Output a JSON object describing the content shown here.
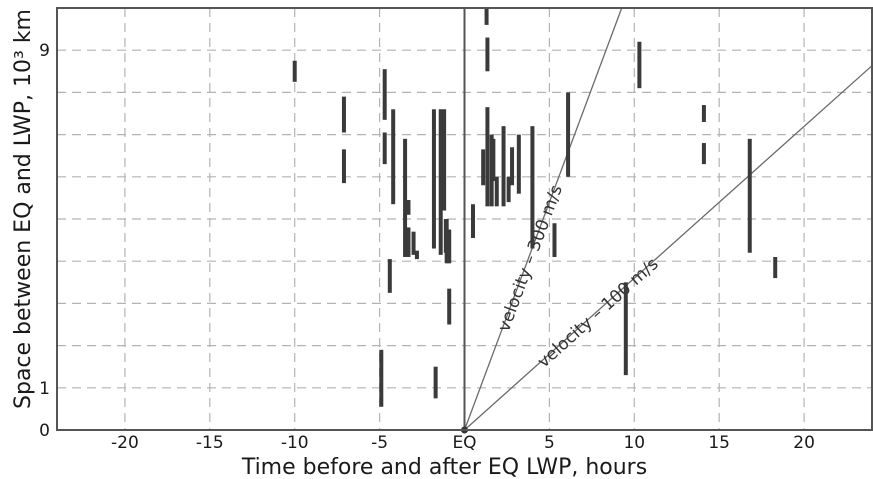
{
  "chart_data": {
    "type": "scatter",
    "xlabel": "Time before and after EQ LWP, hours",
    "ylabel": "Space between EQ and LWP, 10³ km",
    "xlim": [
      -24,
      24
    ],
    "ylim": [
      0,
      10
    ],
    "x_ticks": [
      -20,
      -15,
      -10,
      -5,
      0,
      5,
      10,
      15,
      20
    ],
    "x_tick_labels": [
      "-20",
      "-15",
      "-10",
      "-5",
      "EQ",
      "5",
      "10",
      "15",
      "20"
    ],
    "y_ticks": [
      0,
      1,
      9
    ],
    "y_tick_labels": [
      "0",
      "1",
      "9"
    ],
    "grid": true,
    "event_marker_x": 0,
    "colors": {
      "bars": "#3a3a3a",
      "grid": "#b3b3b3",
      "lines": "#6a6a6a",
      "frame": "#555555"
    },
    "reference_lines": [
      {
        "label": "velocity – 300 m/s",
        "x_at_top": 9.26
      },
      {
        "label": "velocity – 100 m/s",
        "x_at_top": 27.8
      }
    ],
    "bars": [
      {
        "x": -10.0,
        "y0": 8.25,
        "y1": 8.75
      },
      {
        "x": -7.1,
        "y0": 7.05,
        "y1": 7.9
      },
      {
        "x": -7.1,
        "y0": 5.85,
        "y1": 6.65
      },
      {
        "x": -4.9,
        "y0": 0.55,
        "y1": 1.9
      },
      {
        "x": -4.7,
        "y0": 7.35,
        "y1": 8.55
      },
      {
        "x": -4.7,
        "y0": 6.3,
        "y1": 7.05
      },
      {
        "x": -4.4,
        "y0": 3.25,
        "y1": 4.05
      },
      {
        "x": -4.2,
        "y0": 5.35,
        "y1": 7.6
      },
      {
        "x": -3.5,
        "y0": 4.1,
        "y1": 6.9
      },
      {
        "x": -3.3,
        "y0": 5.1,
        "y1": 5.45
      },
      {
        "x": -3.3,
        "y0": 4.1,
        "y1": 4.8
      },
      {
        "x": -3.0,
        "y0": 4.15,
        "y1": 4.7
      },
      {
        "x": -2.8,
        "y0": 4.05,
        "y1": 4.25
      },
      {
        "x": -1.8,
        "y0": 4.3,
        "y1": 7.6
      },
      {
        "x": -1.7,
        "y0": 0.75,
        "y1": 1.5
      },
      {
        "x": -1.4,
        "y0": 4.15,
        "y1": 7.6
      },
      {
        "x": -1.2,
        "y0": 5.2,
        "y1": 7.6
      },
      {
        "x": -1.1,
        "y0": 4.2,
        "y1": 5.0
      },
      {
        "x": -1.05,
        "y0": 3.95,
        "y1": 5.0
      },
      {
        "x": -0.9,
        "y0": 2.5,
        "y1": 3.35
      },
      {
        "x": -0.9,
        "y0": 3.95,
        "y1": 4.75
      },
      {
        "x": 0.5,
        "y0": 4.55,
        "y1": 5.35
      },
      {
        "x": 1.1,
        "y0": 5.8,
        "y1": 6.65
      },
      {
        "x": 1.3,
        "y0": 9.6,
        "y1": 10.0
      },
      {
        "x": 1.35,
        "y0": 8.5,
        "y1": 9.3
      },
      {
        "x": 1.35,
        "y0": 5.3,
        "y1": 7.65
      },
      {
        "x": 1.6,
        "y0": 5.3,
        "y1": 7.0
      },
      {
        "x": 1.7,
        "y0": 5.9,
        "y1": 6.9
      },
      {
        "x": 1.9,
        "y0": 5.3,
        "y1": 6.0
      },
      {
        "x": 2.3,
        "y0": 5.3,
        "y1": 7.2
      },
      {
        "x": 2.6,
        "y0": 5.4,
        "y1": 6.0
      },
      {
        "x": 2.8,
        "y0": 5.8,
        "y1": 6.7
      },
      {
        "x": 3.2,
        "y0": 5.6,
        "y1": 7.0
      },
      {
        "x": 4.0,
        "y0": 4.3,
        "y1": 7.2
      },
      {
        "x": 5.3,
        "y0": 4.1,
        "y1": 4.9
      },
      {
        "x": 6.1,
        "y0": 6.0,
        "y1": 8.0
      },
      {
        "x": 9.5,
        "y0": 1.3,
        "y1": 3.5
      },
      {
        "x": 10.3,
        "y0": 8.1,
        "y1": 9.2
      },
      {
        "x": 14.1,
        "y0": 7.3,
        "y1": 7.7
      },
      {
        "x": 14.1,
        "y0": 6.3,
        "y1": 6.8
      },
      {
        "x": 16.8,
        "y0": 4.2,
        "y1": 6.9
      },
      {
        "x": 18.3,
        "y0": 3.6,
        "y1": 4.1
      }
    ]
  }
}
